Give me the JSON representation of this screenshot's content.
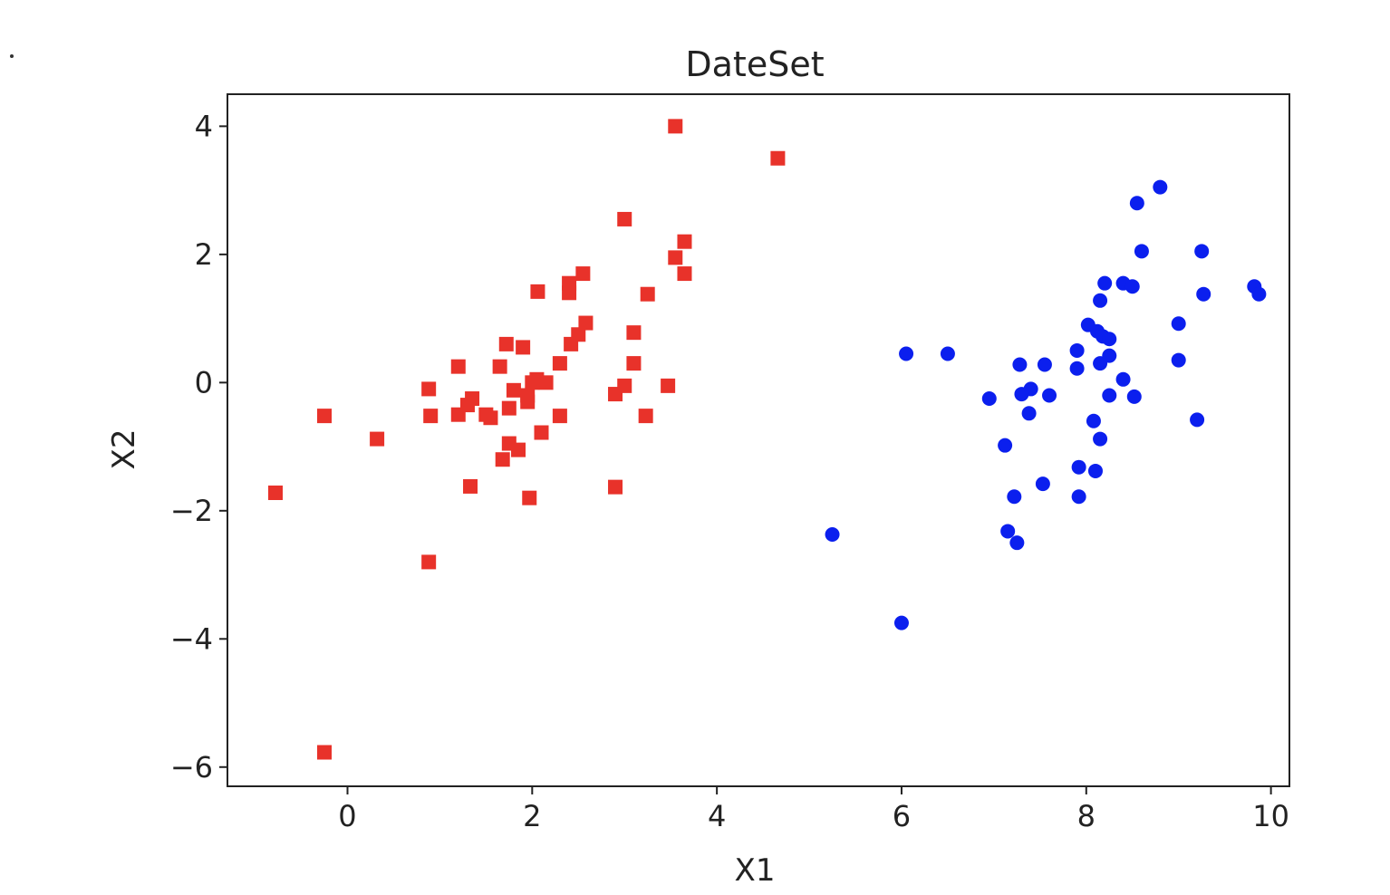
{
  "chart_data": {
    "type": "scatter",
    "title": "DateSet",
    "xlabel": "X1",
    "ylabel": "X2",
    "xlim": [
      -1.3,
      10.2
    ],
    "ylim": [
      -6.3,
      4.5
    ],
    "xticks": [
      0,
      2,
      4,
      6,
      8,
      10
    ],
    "yticks": [
      -6,
      -4,
      -2,
      0,
      2,
      4
    ],
    "grid": false,
    "series": [
      {
        "marker": "square",
        "color": "#e8322a",
        "points": [
          [
            3.55,
            4.0
          ],
          [
            4.66,
            3.5
          ],
          [
            3.0,
            2.55
          ],
          [
            3.65,
            2.2
          ],
          [
            3.55,
            1.95
          ],
          [
            3.65,
            1.7
          ],
          [
            2.55,
            1.7
          ],
          [
            2.4,
            1.55
          ],
          [
            2.4,
            1.4
          ],
          [
            2.06,
            1.42
          ],
          [
            3.25,
            1.38
          ],
          [
            2.58,
            0.93
          ],
          [
            2.5,
            0.75
          ],
          [
            3.1,
            0.78
          ],
          [
            2.42,
            0.6
          ],
          [
            1.72,
            0.6
          ],
          [
            1.9,
            0.55
          ],
          [
            1.65,
            0.25
          ],
          [
            2.3,
            0.3
          ],
          [
            3.1,
            0.3
          ],
          [
            1.2,
            0.25
          ],
          [
            2.15,
            0.0
          ],
          [
            2.05,
            0.05
          ],
          [
            2.0,
            0.0
          ],
          [
            3.0,
            -0.05
          ],
          [
            3.47,
            -0.05
          ],
          [
            0.88,
            -0.1
          ],
          [
            1.8,
            -0.12
          ],
          [
            1.95,
            -0.2
          ],
          [
            2.9,
            -0.18
          ],
          [
            1.35,
            -0.25
          ],
          [
            1.3,
            -0.35
          ],
          [
            1.95,
            -0.3
          ],
          [
            1.75,
            -0.4
          ],
          [
            0.9,
            -0.52
          ],
          [
            1.2,
            -0.5
          ],
          [
            1.5,
            -0.5
          ],
          [
            1.55,
            -0.55
          ],
          [
            2.3,
            -0.52
          ],
          [
            3.23,
            -0.52
          ],
          [
            -0.25,
            -0.52
          ],
          [
            0.32,
            -0.88
          ],
          [
            2.1,
            -0.78
          ],
          [
            1.75,
            -0.95
          ],
          [
            1.85,
            -1.05
          ],
          [
            1.68,
            -1.2
          ],
          [
            1.33,
            -1.62
          ],
          [
            2.9,
            -1.63
          ],
          [
            1.97,
            -1.8
          ],
          [
            -0.78,
            -1.72
          ],
          [
            0.88,
            -2.8
          ],
          [
            -0.25,
            -5.77
          ]
        ]
      },
      {
        "marker": "circle",
        "color": "#0b1fee",
        "points": [
          [
            8.8,
            3.05
          ],
          [
            8.55,
            2.8
          ],
          [
            8.6,
            2.05
          ],
          [
            9.25,
            2.05
          ],
          [
            8.2,
            1.55
          ],
          [
            8.4,
            1.55
          ],
          [
            8.5,
            1.5
          ],
          [
            9.82,
            1.5
          ],
          [
            9.87,
            1.38
          ],
          [
            9.27,
            1.38
          ],
          [
            8.15,
            1.28
          ],
          [
            8.02,
            0.9
          ],
          [
            9.0,
            0.92
          ],
          [
            8.12,
            0.8
          ],
          [
            8.18,
            0.72
          ],
          [
            8.25,
            0.68
          ],
          [
            7.9,
            0.5
          ],
          [
            6.05,
            0.45
          ],
          [
            6.5,
            0.45
          ],
          [
            8.25,
            0.42
          ],
          [
            8.15,
            0.3
          ],
          [
            7.55,
            0.28
          ],
          [
            7.28,
            0.28
          ],
          [
            7.9,
            0.22
          ],
          [
            9.0,
            0.35
          ],
          [
            8.4,
            0.05
          ],
          [
            7.4,
            -0.1
          ],
          [
            7.3,
            -0.18
          ],
          [
            7.6,
            -0.2
          ],
          [
            8.25,
            -0.2
          ],
          [
            8.52,
            -0.22
          ],
          [
            6.95,
            -0.25
          ],
          [
            7.38,
            -0.48
          ],
          [
            8.08,
            -0.6
          ],
          [
            9.2,
            -0.58
          ],
          [
            8.15,
            -0.88
          ],
          [
            7.12,
            -0.98
          ],
          [
            7.92,
            -1.32
          ],
          [
            8.1,
            -1.38
          ],
          [
            7.53,
            -1.58
          ],
          [
            7.22,
            -1.78
          ],
          [
            7.92,
            -1.78
          ],
          [
            7.15,
            -2.32
          ],
          [
            7.25,
            -2.5
          ],
          [
            5.25,
            -2.37
          ],
          [
            6.0,
            -3.75
          ]
        ]
      }
    ]
  }
}
